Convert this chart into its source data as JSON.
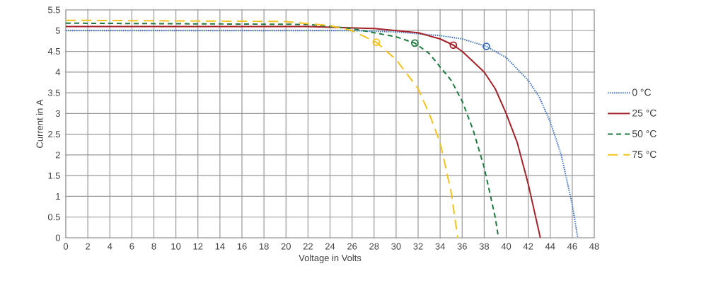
{
  "chart_data": {
    "type": "line",
    "xlabel": "Voltage in Volts",
    "ylabel": "Current in A",
    "xlim": [
      0,
      48
    ],
    "ylim": [
      0,
      5.5
    ],
    "xticks": [
      0,
      2,
      4,
      6,
      8,
      10,
      12,
      14,
      16,
      18,
      20,
      22,
      24,
      26,
      28,
      30,
      32,
      34,
      36,
      38,
      40,
      42,
      44,
      46,
      48
    ],
    "yticks": [
      0,
      0.5,
      1,
      1.5,
      2,
      2.5,
      3,
      3.5,
      4,
      4.5,
      5,
      5.5
    ],
    "grid": true,
    "legend": "right",
    "series": [
      {
        "name": "0 °C",
        "color": "#3a6fc4",
        "line_style": "dotted",
        "x": [
          0,
          20,
          26,
          30,
          34,
          36,
          38.2,
          40,
          42,
          43,
          44,
          45,
          46,
          46.5
        ],
        "values": [
          5.0,
          5.0,
          5.0,
          4.97,
          4.88,
          4.8,
          4.62,
          4.35,
          3.8,
          3.4,
          2.8,
          2.0,
          0.8,
          0
        ]
      },
      {
        "name": "25 °C",
        "color": "#a5222a",
        "line_style": "solid",
        "x": [
          0,
          22,
          28,
          32,
          34,
          35.2,
          36,
          38,
          39,
          40,
          41,
          42,
          43.1
        ],
        "values": [
          5.1,
          5.1,
          5.05,
          4.95,
          4.8,
          4.65,
          4.5,
          4.0,
          3.6,
          3.0,
          2.3,
          1.3,
          0
        ]
      },
      {
        "name": "50 °C",
        "color": "#1e7a3e",
        "line_style": "dashed",
        "x": [
          0,
          22,
          26,
          28,
          30,
          31.7,
          33,
          35,
          36,
          37,
          38,
          39,
          39.3
        ],
        "values": [
          5.18,
          5.15,
          5.05,
          4.95,
          4.85,
          4.7,
          4.45,
          3.8,
          3.3,
          2.6,
          1.7,
          0.5,
          0
        ]
      },
      {
        "name": "75 °C",
        "color": "#f5c21b",
        "line_style": "dashed",
        "x": [
          0,
          20,
          24,
          26,
          28.2,
          30,
          32,
          33,
          34,
          35,
          35.6
        ],
        "values": [
          5.25,
          5.22,
          5.12,
          5.0,
          4.72,
          4.3,
          3.6,
          3.0,
          2.3,
          1.1,
          0
        ]
      },
      {
        "type": "scatter",
        "marker": "circle",
        "color": "#3a6fc4",
        "x": [
          38.2
        ],
        "values": [
          4.62
        ]
      },
      {
        "type": "scatter",
        "marker": "circle",
        "color": "#a5222a",
        "x": [
          35.2
        ],
        "values": [
          4.65
        ]
      },
      {
        "type": "scatter",
        "marker": "circle",
        "color": "#1e7a3e",
        "x": [
          31.7
        ],
        "values": [
          4.7
        ]
      },
      {
        "type": "scatter",
        "marker": "circle",
        "color": "#f5c21b",
        "x": [
          28.2
        ],
        "values": [
          4.72
        ]
      }
    ]
  }
}
